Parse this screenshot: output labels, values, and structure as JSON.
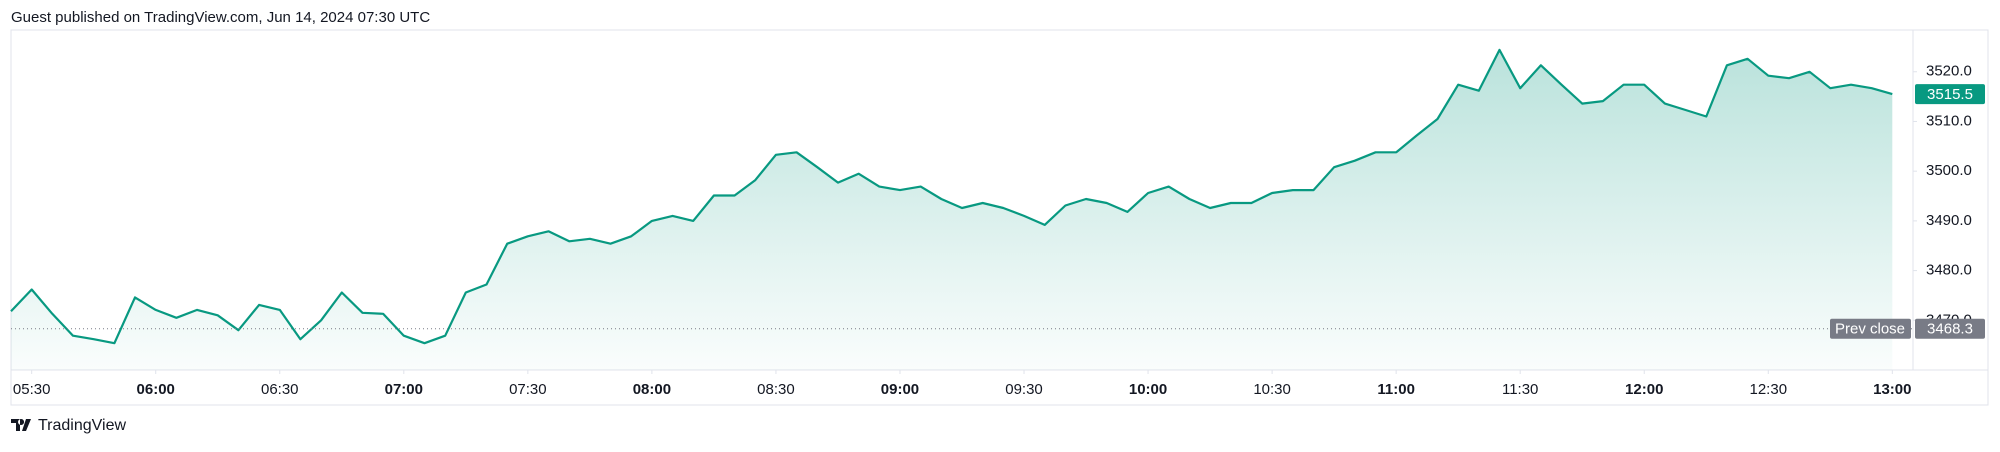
{
  "header": {
    "text": "Guest published on TradingView.com, Jun 14, 2024 07:30 UTC"
  },
  "footer": {
    "brand": "TradingView"
  },
  "chart_data": {
    "type": "area",
    "x": [
      325,
      330,
      335,
      340,
      345,
      350,
      355,
      360,
      365,
      370,
      375,
      380,
      385,
      390,
      395,
      400,
      405,
      410,
      415,
      420,
      425,
      430,
      435,
      440,
      445,
      450,
      455,
      460,
      465,
      470,
      475,
      480,
      485,
      490,
      495,
      500,
      505,
      510,
      515,
      520,
      525,
      530,
      535,
      540,
      545,
      550,
      555,
      560,
      565,
      570,
      575,
      580,
      585,
      590,
      595,
      600,
      605,
      610,
      615,
      620,
      625,
      630,
      635,
      640,
      645,
      650,
      655,
      660,
      665,
      670,
      675,
      680,
      685,
      690,
      695,
      700,
      705,
      710,
      715,
      720,
      725,
      730,
      735,
      740,
      745,
      750,
      755,
      760,
      765,
      770,
      775,
      780
    ],
    "values": [
      3471.8,
      3476.2,
      3471.3,
      3466.9,
      3466.2,
      3465.4,
      3474.6,
      3472.1,
      3470.5,
      3472.1,
      3471.0,
      3468.0,
      3473.1,
      3472.1,
      3466.2,
      3470.0,
      3475.6,
      3471.5,
      3471.3,
      3466.9,
      3465.4,
      3466.9,
      3475.6,
      3477.2,
      3485.4,
      3486.9,
      3487.9,
      3485.9,
      3486.4,
      3485.4,
      3486.9,
      3490.0,
      3491.0,
      3490.0,
      3495.1,
      3495.1,
      3498.2,
      3503.3,
      3503.8,
      3500.8,
      3497.7,
      3499.5,
      3496.9,
      3496.2,
      3496.9,
      3494.4,
      3492.6,
      3493.6,
      3492.6,
      3491.0,
      3489.2,
      3493.1,
      3494.4,
      3493.6,
      3491.8,
      3495.6,
      3496.9,
      3494.4,
      3492.6,
      3493.6,
      3493.6,
      3495.6,
      3496.2,
      3496.2,
      3500.8,
      3502.1,
      3503.8,
      3503.8,
      3507.2,
      3510.5,
      3517.4,
      3516.2,
      3524.4,
      3516.7,
      3521.3,
      3517.4,
      3513.6,
      3514.1,
      3517.4,
      3517.4,
      3513.6,
      3512.3,
      3511.0,
      3521.3,
      3522.6,
      3519.2,
      3518.7,
      3520.0,
      3516.7,
      3517.4,
      3516.7,
      3515.5
    ],
    "color": "#089981",
    "xlim": [
      325,
      785
    ],
    "ylim": [
      3460,
      3528
    ],
    "xticks": [
      {
        "value": 330,
        "label": "05:30"
      },
      {
        "value": 360,
        "label": "06:00"
      },
      {
        "value": 390,
        "label": "06:30"
      },
      {
        "value": 420,
        "label": "07:00"
      },
      {
        "value": 450,
        "label": "07:30"
      },
      {
        "value": 480,
        "label": "08:00"
      },
      {
        "value": 510,
        "label": "08:30"
      },
      {
        "value": 540,
        "label": "09:00"
      },
      {
        "value": 570,
        "label": "09:30"
      },
      {
        "value": 600,
        "label": "10:00"
      },
      {
        "value": 630,
        "label": "10:30"
      },
      {
        "value": 660,
        "label": "11:00"
      },
      {
        "value": 690,
        "label": "11:30"
      },
      {
        "value": 720,
        "label": "12:00"
      },
      {
        "value": 750,
        "label": "12:30"
      },
      {
        "value": 780,
        "label": "13:00"
      }
    ],
    "yticks": [
      {
        "value": 3470,
        "label": "3470.0"
      },
      {
        "value": 3480,
        "label": "3480.0"
      },
      {
        "value": 3490,
        "label": "3490.0"
      },
      {
        "value": 3500,
        "label": "3500.0"
      },
      {
        "value": 3510,
        "label": "3510.0"
      },
      {
        "value": 3520,
        "label": "3520.0"
      }
    ],
    "prev_close": {
      "label": "Prev close",
      "value": 3468.3
    }
  }
}
